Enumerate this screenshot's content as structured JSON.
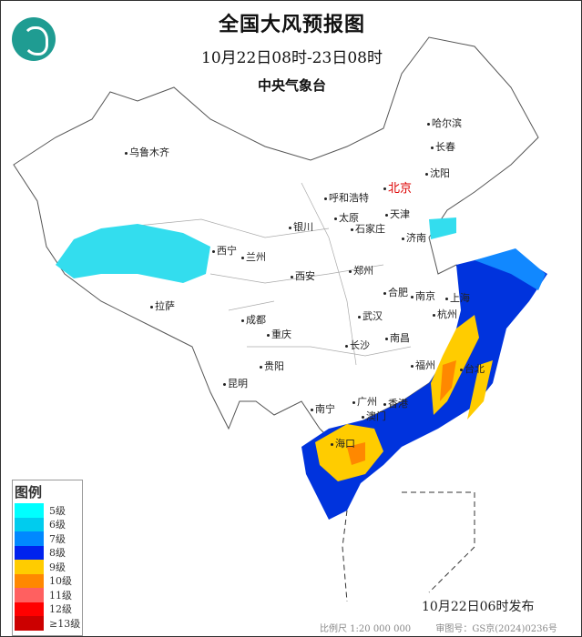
{
  "title": "全国大风预报图",
  "period": "10月22日08时-23日08时",
  "agency": "中央气象台",
  "issue_time": "10月22日06时发布",
  "scale": "比例尺 1:20 000 000",
  "map_number": "审图号：GS京(2024)0236号",
  "legend": {
    "title": "图例",
    "items": [
      {
        "label": "5级",
        "color": "#00ffff"
      },
      {
        "label": "6级",
        "color": "#00ccee"
      },
      {
        "label": "7级",
        "color": "#0088ff"
      },
      {
        "label": "8级",
        "color": "#0022ee"
      },
      {
        "label": "9级",
        "color": "#ffcc00"
      },
      {
        "label": "10级",
        "color": "#ff8800"
      },
      {
        "label": "11级",
        "color": "#ff6060"
      },
      {
        "label": "12级",
        "color": "#ff0000"
      },
      {
        "label": "≥13级",
        "color": "#cc0000"
      }
    ]
  },
  "cities": [
    "乌鲁木齐",
    "哈尔滨",
    "长春",
    "沈阳",
    "呼和浩特",
    "北京",
    "天津",
    "银川",
    "太原",
    "石家庄",
    "济南",
    "西宁",
    "兰州",
    "西安",
    "郑州",
    "合肥",
    "南京",
    "上海",
    "拉萨",
    "成都",
    "武汉",
    "杭州",
    "重庆",
    "长沙",
    "南昌",
    "贵阳",
    "福州",
    "台北",
    "昆明",
    "南宁",
    "广州",
    "香港",
    "澳门",
    "海口"
  ]
}
